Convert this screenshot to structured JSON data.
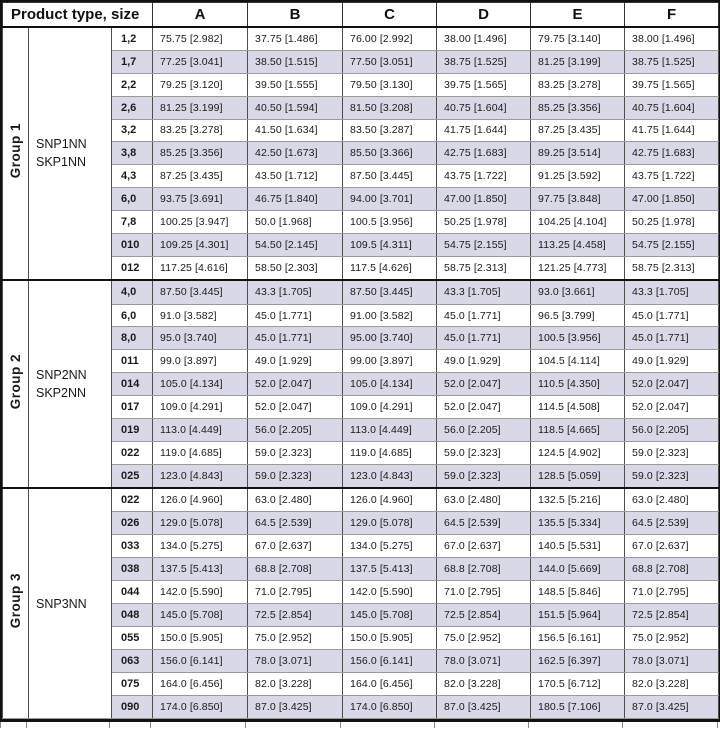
{
  "table": {
    "header_left": "Product type, size",
    "columns": [
      "A",
      "B",
      "C",
      "D",
      "E",
      "F"
    ],
    "colors": {
      "row_alternate": "#d9d8e7",
      "border_dark": "#111111",
      "border_row": "#9a9a9a",
      "text": "#1a1a1a"
    },
    "groups": [
      {
        "name": "Group 1",
        "products": [
          "SNP1NN",
          "SKP1NN"
        ],
        "rows": [
          {
            "size": "1,2",
            "values": [
              "75.75 [2.982]",
              "37.75 [1.486]",
              "76.00 [2.992]",
              "38.00 [1.496]",
              "79.75 [3.140]",
              "38.00 [1.496]"
            ]
          },
          {
            "size": "1,7",
            "values": [
              "77.25 [3.041]",
              "38.50 [1.515]",
              "77.50 [3.051]",
              "38.75 [1.525]",
              "81.25 [3.199]",
              "38.75 [1.525]"
            ]
          },
          {
            "size": "2,2",
            "values": [
              "79.25 [3.120]",
              "39.50 [1.555]",
              "79.50 [3.130]",
              "39.75 [1.565]",
              "83.25 [3.278]",
              "39.75 [1.565]"
            ]
          },
          {
            "size": "2,6",
            "values": [
              "81.25 [3.199]",
              "40.50 [1.594]",
              "81.50 [3.208]",
              "40.75 [1.604]",
              "85.25 [3.356]",
              "40.75 [1.604]"
            ]
          },
          {
            "size": "3,2",
            "values": [
              "83.25 [3.278]",
              "41.50 [1.634]",
              "83.50 [3.287]",
              "41.75 [1.644]",
              "87.25 [3.435]",
              "41.75 [1.644]"
            ]
          },
          {
            "size": "3,8",
            "values": [
              "85.25 [3.356]",
              "42.50 [1.673]",
              "85.50 [3.366]",
              "42.75 [1.683]",
              "89.25 [3.514]",
              "42.75 [1.683]"
            ]
          },
          {
            "size": "4,3",
            "values": [
              "87.25 [3.435]",
              "43.50 [1.712]",
              "87.50 [3.445]",
              "43.75 [1.722]",
              "91.25 [3.592]",
              "43.75 [1.722]"
            ]
          },
          {
            "size": "6,0",
            "values": [
              "93.75 [3.691]",
              "46.75 [1.840]",
              "94.00 [3.701]",
              "47.00 [1.850]",
              "97.75 [3.848]",
              "47.00 [1.850]"
            ]
          },
          {
            "size": "7,8",
            "values": [
              "100.25 [3.947]",
              "50.0 [1.968]",
              "100.5 [3.956]",
              "50.25 [1.978]",
              "104.25 [4.104]",
              "50.25 [1.978]"
            ]
          },
          {
            "size": "010",
            "values": [
              "109.25 [4.301]",
              "54.50 [2.145]",
              "109.5 [4.311]",
              "54.75 [2.155]",
              "113.25 [4.458]",
              "54.75 [2.155]"
            ]
          },
          {
            "size": "012",
            "values": [
              "117.25 [4.616]",
              "58.50 [2.303]",
              "117.5 [4.626]",
              "58.75 [2.313]",
              "121.25 [4.773]",
              "58.75 [2.313]"
            ]
          }
        ]
      },
      {
        "name": "Group 2",
        "products": [
          "SNP2NN",
          "SKP2NN"
        ],
        "rows": [
          {
            "size": "4,0",
            "values": [
              "87.50 [3.445]",
              "43.3 [1.705]",
              "87.50 [3.445]",
              "43.3 [1.705]",
              "93.0 [3.661]",
              "43.3 [1.705]"
            ]
          },
          {
            "size": "6,0",
            "values": [
              "91.0 [3.582]",
              "45.0 [1.771]",
              "91.00 [3.582]",
              "45.0 [1.771]",
              "96.5 [3.799]",
              "45.0 [1.771]"
            ]
          },
          {
            "size": "8,0",
            "values": [
              "95.0 [3.740]",
              "45.0 [1.771]",
              "95.00 [3.740]",
              "45.0 [1.771]",
              "100.5 [3.956]",
              "45.0 [1.771]"
            ]
          },
          {
            "size": "011",
            "values": [
              "99.0 [3.897]",
              "49.0 [1.929]",
              "99.00 [3.897]",
              "49.0 [1.929]",
              "104.5 [4.114]",
              "49.0 [1.929]"
            ]
          },
          {
            "size": "014",
            "values": [
              "105.0 [4.134]",
              "52.0 [2.047]",
              "105.0 [4.134]",
              "52.0 [2.047]",
              "110.5 [4.350]",
              "52.0 [2.047]"
            ]
          },
          {
            "size": "017",
            "values": [
              "109.0 [4.291]",
              "52.0 [2.047]",
              "109.0 [4.291]",
              "52.0 [2.047]",
              "114.5 [4.508]",
              "52.0 [2.047]"
            ]
          },
          {
            "size": "019",
            "values": [
              "113.0 [4.449]",
              "56.0 [2.205]",
              "113.0 [4.449]",
              "56.0 [2.205]",
              "118.5 [4.665]",
              "56.0 [2.205]"
            ]
          },
          {
            "size": "022",
            "values": [
              "119.0 [4.685]",
              "59.0 [2.323]",
              "119.0 [4.685]",
              "59.0 [2.323]",
              "124.5 [4.902]",
              "59.0 [2.323]"
            ]
          },
          {
            "size": "025",
            "values": [
              "123.0 [4.843]",
              "59.0 [2.323]",
              "123.0 [4.843]",
              "59.0 [2.323]",
              "128.5 [5.059]",
              "59.0 [2.323]"
            ]
          }
        ]
      },
      {
        "name": "Group 3",
        "products": [
          "SNP3NN"
        ],
        "rows": [
          {
            "size": "022",
            "values": [
              "126.0 [4.960]",
              "63.0 [2.480]",
              "126.0 [4.960]",
              "63.0 [2.480]",
              "132.5 [5.216]",
              "63.0 [2.480]"
            ]
          },
          {
            "size": "026",
            "values": [
              "129.0 [5.078]",
              "64.5 [2.539]",
              "129.0 [5.078]",
              "64.5 [2.539]",
              "135.5 [5.334]",
              "64.5 [2.539]"
            ]
          },
          {
            "size": "033",
            "values": [
              "134.0 [5.275]",
              "67.0 [2.637]",
              "134.0 [5.275]",
              "67.0 [2.637]",
              "140.5 [5.531]",
              "67.0 [2.637]"
            ]
          },
          {
            "size": "038",
            "values": [
              "137.5 [5.413]",
              "68.8 [2.708]",
              "137.5 [5.413]",
              "68.8 [2.708]",
              "144.0 [5.669]",
              "68.8 [2.708]"
            ]
          },
          {
            "size": "044",
            "values": [
              "142.0 [5.590]",
              "71.0 [2.795]",
              "142.0 [5.590]",
              "71.0 [2.795]",
              "148.5 [5.846]",
              "71.0 [2.795]"
            ]
          },
          {
            "size": "048",
            "values": [
              "145.0 [5.708]",
              "72.5 [2.854]",
              "145.0 [5.708]",
              "72.5 [2.854]",
              "151.5 [5.964]",
              "72.5 [2.854]"
            ]
          },
          {
            "size": "055",
            "values": [
              "150.0 [5.905]",
              "75.0 [2.952]",
              "150.0 [5.905]",
              "75.0 [2.952]",
              "156.5 [6.161]",
              "75.0 [2.952]"
            ]
          },
          {
            "size": "063",
            "values": [
              "156.0 [6.141]",
              "78.0 [3.071]",
              "156.0 [6.141]",
              "78.0 [3.071]",
              "162.5 [6.397]",
              "78.0 [3.071]"
            ]
          },
          {
            "size": "075",
            "values": [
              "164.0 [6.456]",
              "82.0 [3.228]",
              "164.0 [6.456]",
              "82.0 [3.228]",
              "170.5 [6.712]",
              "82.0 [3.228]"
            ]
          },
          {
            "size": "090",
            "values": [
              "174.0 [6.850]",
              "87.0 [3.425]",
              "174.0 [6.850]",
              "87.0 [3.425]",
              "180.5 [7.106]",
              "87.0 [3.425]"
            ]
          }
        ]
      }
    ]
  }
}
